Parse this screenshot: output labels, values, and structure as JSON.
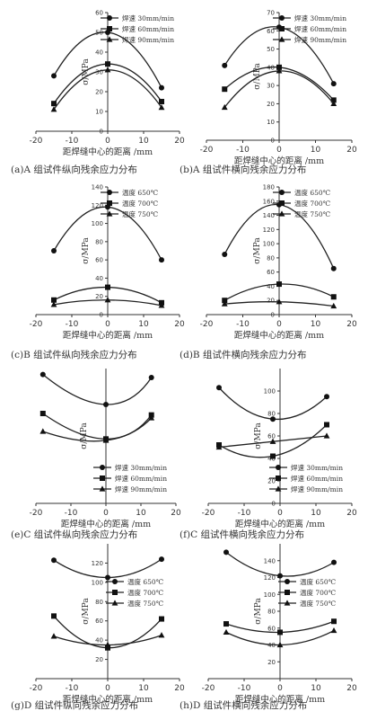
{
  "chart_data": [
    {
      "type": "line",
      "caption": "(a)A 组试件纵向残余应力分布",
      "xlabel": "距焊缝中心的距离 /mm",
      "ylabel": "σ/MPa",
      "xlim": [
        -20,
        20
      ],
      "ylim": [
        0,
        60
      ],
      "yticks": [
        0,
        10,
        20,
        30,
        40,
        50,
        60
      ],
      "xticks": [
        -20,
        -10,
        0,
        10,
        20
      ],
      "show_xticks": true,
      "legend_pos": "top-right",
      "series": [
        {
          "name": "焊速 30mm/min",
          "marker": "circle",
          "x": [
            -15,
            0,
            15
          ],
          "y": [
            28,
            50,
            22
          ]
        },
        {
          "name": "焊速 60mm/min",
          "marker": "square",
          "x": [
            -15,
            0,
            15
          ],
          "y": [
            14,
            34,
            15
          ]
        },
        {
          "name": "焊速 90mm/min",
          "marker": "triangle",
          "x": [
            -15,
            0,
            15
          ],
          "y": [
            11,
            31,
            12
          ]
        }
      ]
    },
    {
      "type": "line",
      "caption": "(b)A 组试件横向残余应力分布",
      "xlabel": "距焊缝中心的距离 /mm",
      "ylabel": "σ/MPa",
      "xlim": [
        -20,
        20
      ],
      "ylim": [
        0,
        70
      ],
      "yticks": [
        0,
        10,
        20,
        30,
        40,
        50,
        60,
        70
      ],
      "xticks": [
        -20,
        -10,
        0,
        10,
        20
      ],
      "show_xticks": true,
      "legend_pos": "top-right",
      "series": [
        {
          "name": "焊速 30mm/min",
          "marker": "circle",
          "x": [
            -15,
            0,
            15
          ],
          "y": [
            41,
            62,
            31
          ]
        },
        {
          "name": "焊速 60mm/min",
          "marker": "square",
          "x": [
            -15,
            0,
            15
          ],
          "y": [
            28,
            40,
            22
          ]
        },
        {
          "name": "焊速 90mm/min",
          "marker": "triangle",
          "x": [
            -15,
            0,
            15
          ],
          "y": [
            18,
            38,
            20
          ]
        }
      ]
    },
    {
      "type": "line",
      "caption": "(c)B 组试件纵向残余应力分布",
      "xlabel": "距焊缝中心的距离 /mm",
      "ylabel": "σ/MPa",
      "xlim": [
        -20,
        20
      ],
      "ylim": [
        0,
        140
      ],
      "yticks": [
        0,
        20,
        40,
        60,
        80,
        100,
        120,
        140
      ],
      "xticks": [
        -20,
        -10,
        0,
        10,
        20
      ],
      "show_xticks": true,
      "legend_pos": "top-right",
      "series": [
        {
          "name": "温度 650℃",
          "marker": "circle",
          "x": [
            -15,
            0,
            15
          ],
          "y": [
            70,
            118,
            60
          ]
        },
        {
          "name": "温度 700℃",
          "marker": "square",
          "x": [
            -15,
            0,
            15
          ],
          "y": [
            16,
            30,
            13
          ]
        },
        {
          "name": "温度 750℃",
          "marker": "triangle",
          "x": [
            -15,
            0,
            15
          ],
          "y": [
            11,
            16,
            10
          ]
        }
      ]
    },
    {
      "type": "line",
      "caption": "(d)B 组试件横向残余应力分布",
      "xlabel": "距焊缝中心的距离 /mm",
      "ylabel": "σ/MPa",
      "xlim": [
        -20,
        20
      ],
      "ylim": [
        0,
        180
      ],
      "yticks": [
        0,
        20,
        40,
        60,
        80,
        100,
        120,
        140,
        160,
        180
      ],
      "xticks": [
        -20,
        -10,
        0,
        10,
        20
      ],
      "show_xticks": true,
      "legend_pos": "top-right",
      "series": [
        {
          "name": "温度 650℃",
          "marker": "circle",
          "x": [
            -15,
            0,
            15
          ],
          "y": [
            85,
            155,
            65
          ]
        },
        {
          "name": "温度 700℃",
          "marker": "square",
          "x": [
            -15,
            0,
            15
          ],
          "y": [
            20,
            43,
            25
          ]
        },
        {
          "name": "温度 750℃",
          "marker": "triangle",
          "x": [
            -15,
            0,
            15
          ],
          "y": [
            15,
            18,
            12
          ]
        }
      ]
    },
    {
      "type": "line",
      "caption": "(e)C 组试件纵向残余应力分布",
      "xlabel": "距焊缝中心的距离 /mm",
      "ylabel": "σ/MPa",
      "xlim": [
        -20,
        20
      ],
      "ylim": [
        0,
        90
      ],
      "yticks": [],
      "xticks": [
        -20,
        -10,
        0,
        10,
        20
      ],
      "show_xticks": true,
      "legend_pos": "bottom-right",
      "series": [
        {
          "name": "焊速 30mm/min",
          "marker": "circle",
          "x": [
            -18,
            0,
            13
          ],
          "y": [
            86,
            66,
            84
          ]
        },
        {
          "name": "焊速 60mm/min",
          "marker": "square",
          "x": [
            -18,
            0,
            13
          ],
          "y": [
            60,
            43,
            59
          ]
        },
        {
          "name": "焊速 90mm/min",
          "marker": "triangle",
          "x": [
            -18,
            0,
            13
          ],
          "y": [
            48,
            42,
            57
          ]
        }
      ]
    },
    {
      "type": "line",
      "caption": "(f)C 组试件横向残余应力分布",
      "xlabel": "距焊缝中心的距离 /mm",
      "ylabel": "σ/MPa",
      "xlim": [
        -20,
        20
      ],
      "ylim": [
        0,
        120
      ],
      "yticks": [
        0,
        20,
        40,
        60,
        80,
        100
      ],
      "xticks": [
        -20,
        -10,
        0,
        10,
        20
      ],
      "show_xticks": true,
      "legend_pos": "bottom-right",
      "series": [
        {
          "name": "焊速 30mm/min",
          "marker": "circle",
          "x": [
            -17,
            -2,
            13
          ],
          "y": [
            103,
            75,
            95
          ]
        },
        {
          "name": "焊速 60mm/min",
          "marker": "square",
          "x": [
            -17,
            -2,
            13
          ],
          "y": [
            52,
            42,
            70
          ]
        },
        {
          "name": "焊速 90mm/min",
          "marker": "triangle",
          "x": [
            -17,
            -2,
            13
          ],
          "y": [
            50,
            55,
            60
          ]
        }
      ]
    },
    {
      "type": "line",
      "caption": "(g)D 组试件纵向残余应力分布",
      "xlabel": "距焊缝中心的距离 /mm",
      "ylabel": "σ/MPa",
      "xlim": [
        -20,
        20
      ],
      "ylim": [
        0,
        140
      ],
      "yticks": [
        20,
        40,
        60,
        80,
        100,
        120
      ],
      "xticks": [
        -20,
        -10,
        0,
        10,
        20
      ],
      "show_xticks": true,
      "legend_pos": "right",
      "series": [
        {
          "name": "温度 650℃",
          "marker": "circle",
          "x": [
            -15,
            0,
            15
          ],
          "y": [
            123,
            105,
            124
          ]
        },
        {
          "name": "温度 700℃",
          "marker": "square",
          "x": [
            -15,
            0,
            15
          ],
          "y": [
            65,
            32,
            62
          ]
        },
        {
          "name": "温度 750℃",
          "marker": "triangle",
          "x": [
            -15,
            0,
            15
          ],
          "y": [
            44,
            35,
            45
          ]
        }
      ]
    },
    {
      "type": "line",
      "caption": "(h)D 组试件横向残余应力分布",
      "xlabel": "距焊缝中心的距离 /mm",
      "ylabel": "σ/MPa",
      "xlim": [
        -20,
        20
      ],
      "ylim": [
        0,
        160
      ],
      "yticks": [
        20,
        40,
        60,
        80,
        100,
        120,
        140
      ],
      "xticks": [
        -20,
        -10,
        0,
        10,
        20
      ],
      "show_xticks": true,
      "legend_pos": "right",
      "series": [
        {
          "name": "温度 650℃",
          "marker": "circle",
          "x": [
            -15,
            0,
            15
          ],
          "y": [
            150,
            122,
            138
          ]
        },
        {
          "name": "温度 700℃",
          "marker": "square",
          "x": [
            -15,
            0,
            15
          ],
          "y": [
            65,
            55,
            68
          ]
        },
        {
          "name": "温度 750℃",
          "marker": "triangle",
          "x": [
            -15,
            0,
            15
          ],
          "y": [
            55,
            40,
            57
          ]
        }
      ]
    }
  ]
}
